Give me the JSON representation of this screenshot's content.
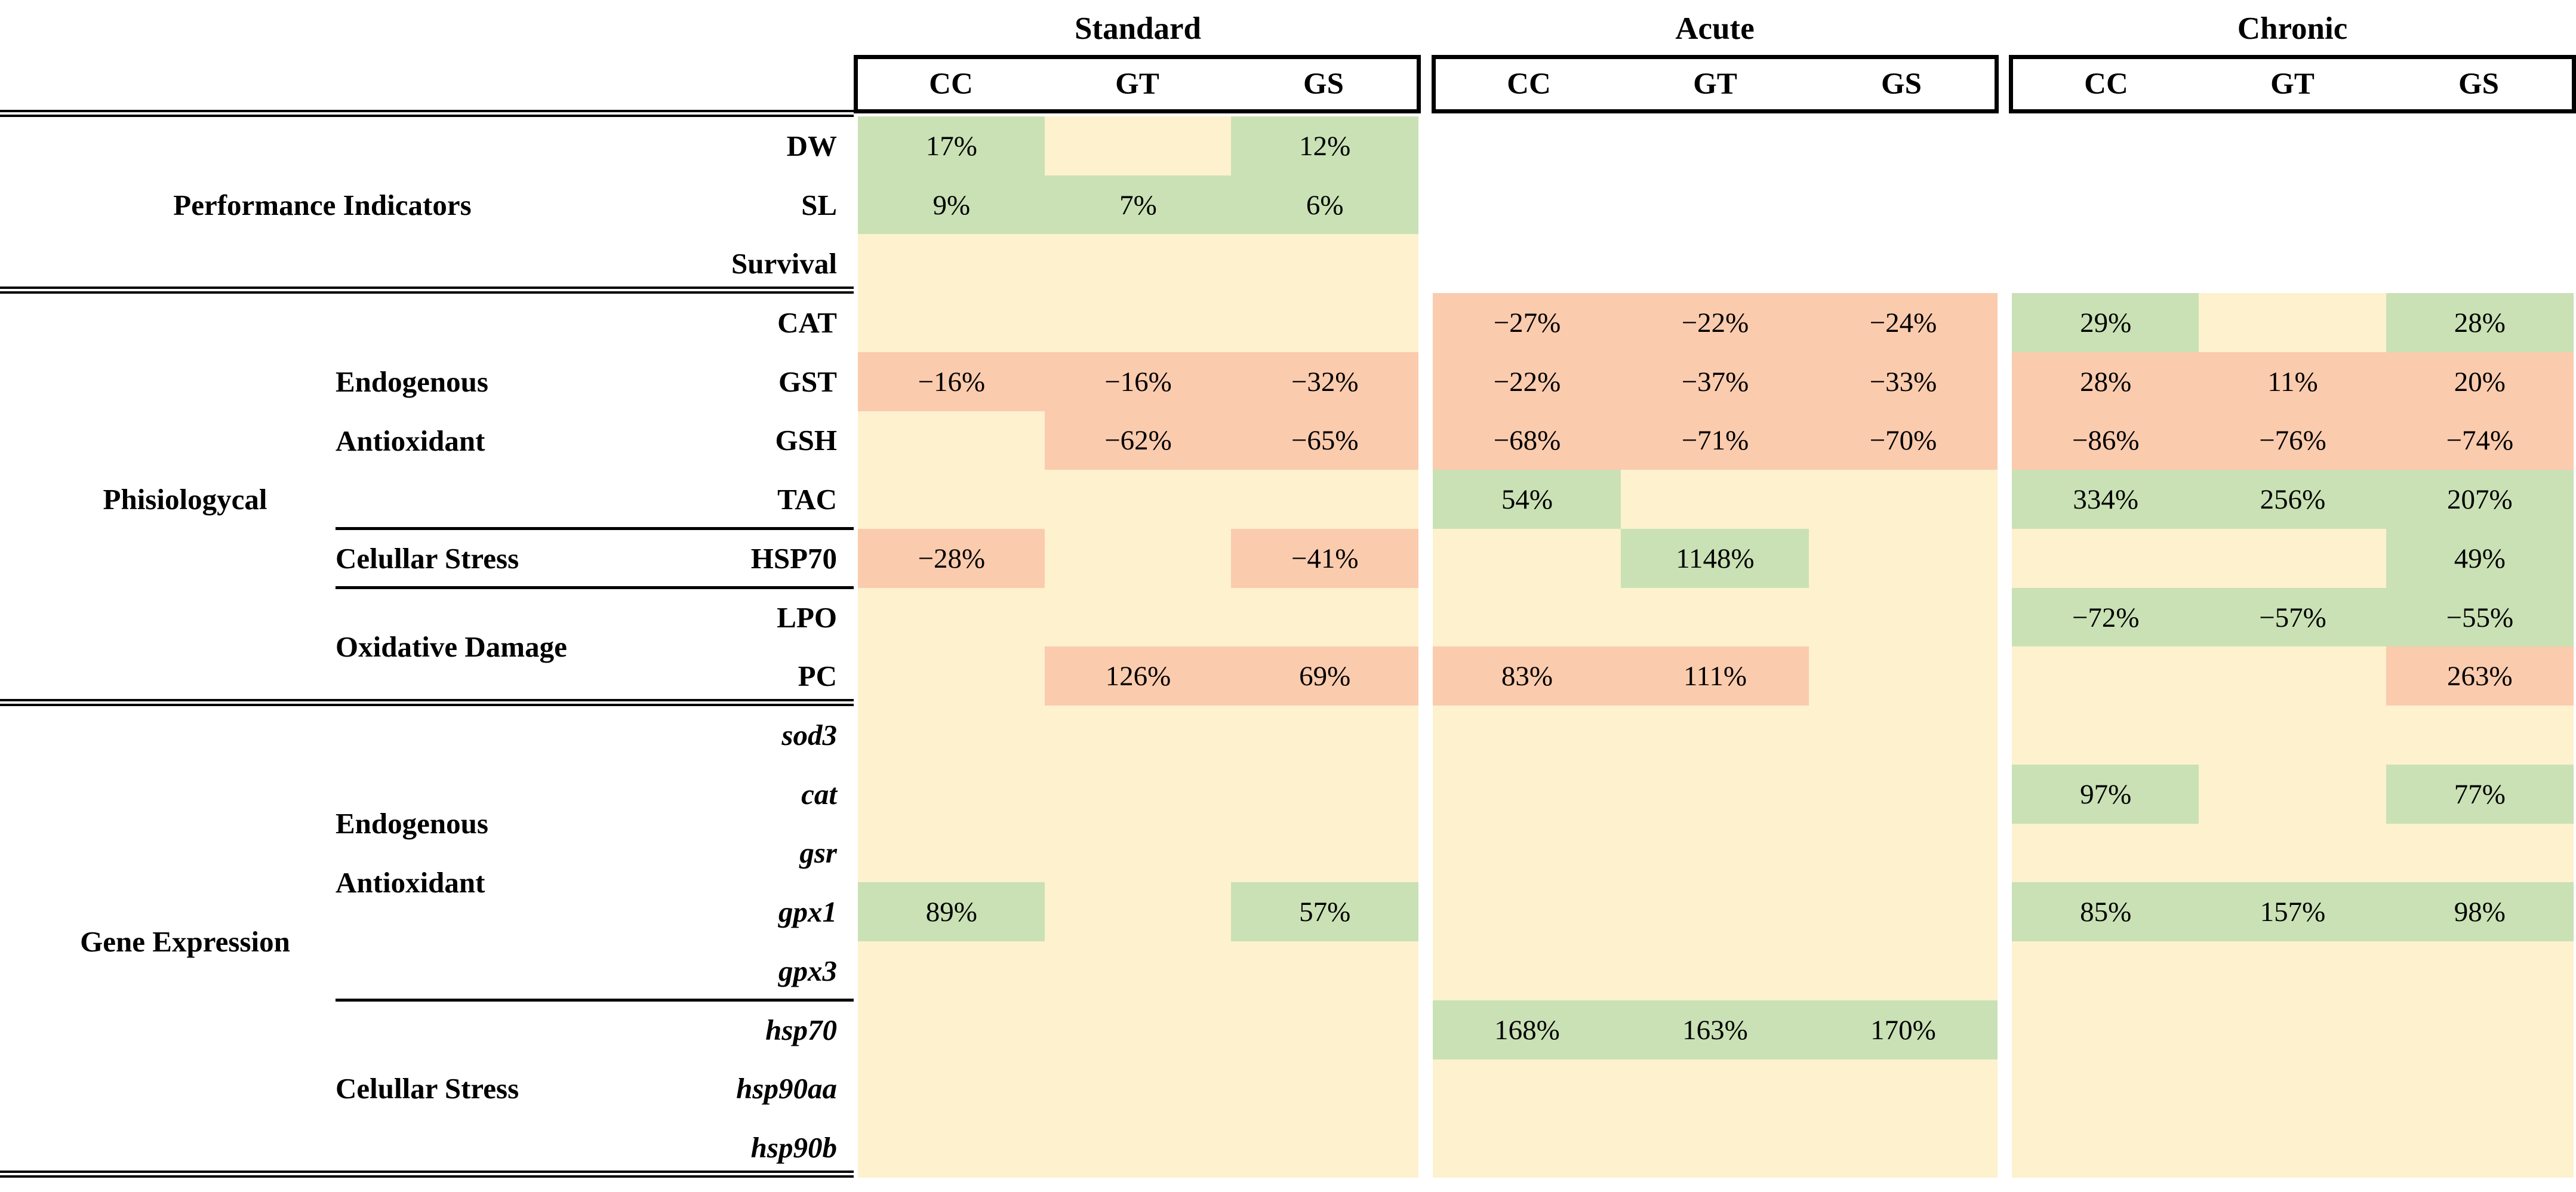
{
  "chart_data": {
    "type": "heatmap",
    "title": "",
    "column_groups": [
      "Standard",
      "Acute",
      "Chronic"
    ],
    "columns_per_group": [
      "CC",
      "GT",
      "GS"
    ],
    "color_legend": {
      "g": "#C9E1B5",
      "y": "#FDF1CE",
      "o": "#FBCBAE",
      "w": "#FFFFFF"
    },
    "color_meaning": {
      "g": "significant increase / favorable (green)",
      "o": "significant decrease / unfavorable (orange)",
      "y": "no significant change (cream)",
      "w": "not measured (white)"
    },
    "rows": [
      {
        "param": "DW",
        "italic": false,
        "cells": [
          [
            "17%",
            "g"
          ],
          [
            "",
            "y"
          ],
          [
            "12%",
            "g"
          ],
          [
            "",
            "w"
          ],
          [
            "",
            "w"
          ],
          [
            "",
            "w"
          ],
          [
            "",
            "w"
          ],
          [
            "",
            "w"
          ],
          [
            "",
            "w"
          ]
        ]
      },
      {
        "param": "SL",
        "italic": false,
        "cells": [
          [
            "9%",
            "g"
          ],
          [
            "7%",
            "g"
          ],
          [
            "6%",
            "g"
          ],
          [
            "",
            "w"
          ],
          [
            "",
            "w"
          ],
          [
            "",
            "w"
          ],
          [
            "",
            "w"
          ],
          [
            "",
            "w"
          ],
          [
            "",
            "w"
          ]
        ]
      },
      {
        "param": "Survival",
        "italic": false,
        "cells": [
          [
            "",
            "y"
          ],
          [
            "",
            "y"
          ],
          [
            "",
            "y"
          ],
          [
            "",
            "w"
          ],
          [
            "",
            "w"
          ],
          [
            "",
            "w"
          ],
          [
            "",
            "w"
          ],
          [
            "",
            "w"
          ],
          [
            "",
            "w"
          ]
        ]
      },
      {
        "param": "CAT",
        "italic": false,
        "cells": [
          [
            "",
            "y"
          ],
          [
            "",
            "y"
          ],
          [
            "",
            "y"
          ],
          [
            "−27%",
            "o"
          ],
          [
            "−22%",
            "o"
          ],
          [
            "−24%",
            "o"
          ],
          [
            "29%",
            "g"
          ],
          [
            "",
            "y"
          ],
          [
            "28%",
            "g"
          ]
        ]
      },
      {
        "param": "GST",
        "italic": false,
        "cells": [
          [
            "−16%",
            "o"
          ],
          [
            "−16%",
            "o"
          ],
          [
            "−32%",
            "o"
          ],
          [
            "−22%",
            "o"
          ],
          [
            "−37%",
            "o"
          ],
          [
            "−33%",
            "o"
          ],
          [
            "28%",
            "o"
          ],
          [
            "11%",
            "o"
          ],
          [
            "20%",
            "o"
          ]
        ]
      },
      {
        "param": "GSH",
        "italic": false,
        "cells": [
          [
            "",
            "y"
          ],
          [
            "−62%",
            "o"
          ],
          [
            "−65%",
            "o"
          ],
          [
            "−68%",
            "o"
          ],
          [
            "−71%",
            "o"
          ],
          [
            "−70%",
            "o"
          ],
          [
            "−86%",
            "o"
          ],
          [
            "−76%",
            "o"
          ],
          [
            "−74%",
            "o"
          ]
        ]
      },
      {
        "param": "TAC",
        "italic": false,
        "cells": [
          [
            "",
            "y"
          ],
          [
            "",
            "y"
          ],
          [
            "",
            "y"
          ],
          [
            "54%",
            "g"
          ],
          [
            "",
            "y"
          ],
          [
            "",
            "y"
          ],
          [
            "334%",
            "g"
          ],
          [
            "256%",
            "g"
          ],
          [
            "207%",
            "g"
          ]
        ]
      },
      {
        "param": "HSP70",
        "italic": false,
        "cells": [
          [
            "−28%",
            "o"
          ],
          [
            "",
            "y"
          ],
          [
            "−41%",
            "o"
          ],
          [
            "",
            "y"
          ],
          [
            "1148%",
            "g"
          ],
          [
            "",
            "y"
          ],
          [
            "",
            "y"
          ],
          [
            "",
            "y"
          ],
          [
            "49%",
            "g"
          ]
        ]
      },
      {
        "param": "LPO",
        "italic": false,
        "cells": [
          [
            "",
            "y"
          ],
          [
            "",
            "y"
          ],
          [
            "",
            "y"
          ],
          [
            "",
            "y"
          ],
          [
            "",
            "y"
          ],
          [
            "",
            "y"
          ],
          [
            "−72%",
            "g"
          ],
          [
            "−57%",
            "g"
          ],
          [
            "−55%",
            "g"
          ]
        ]
      },
      {
        "param": "PC",
        "italic": false,
        "cells": [
          [
            "",
            "y"
          ],
          [
            "126%",
            "o"
          ],
          [
            "69%",
            "o"
          ],
          [
            "83%",
            "o"
          ],
          [
            "111%",
            "o"
          ],
          [
            "",
            "y"
          ],
          [
            "",
            "y"
          ],
          [
            "",
            "y"
          ],
          [
            "263%",
            "o"
          ]
        ]
      },
      {
        "param": "sod3",
        "italic": true,
        "cells": [
          [
            "",
            "y"
          ],
          [
            "",
            "y"
          ],
          [
            "",
            "y"
          ],
          [
            "",
            "y"
          ],
          [
            "",
            "y"
          ],
          [
            "",
            "y"
          ],
          [
            "",
            "y"
          ],
          [
            "",
            "y"
          ],
          [
            "",
            "y"
          ]
        ]
      },
      {
        "param": "cat",
        "italic": true,
        "cells": [
          [
            "",
            "y"
          ],
          [
            "",
            "y"
          ],
          [
            "",
            "y"
          ],
          [
            "",
            "y"
          ],
          [
            "",
            "y"
          ],
          [
            "",
            "y"
          ],
          [
            "97%",
            "g"
          ],
          [
            "",
            "y"
          ],
          [
            "77%",
            "g"
          ]
        ]
      },
      {
        "param": "gsr",
        "italic": true,
        "cells": [
          [
            "",
            "y"
          ],
          [
            "",
            "y"
          ],
          [
            "",
            "y"
          ],
          [
            "",
            "y"
          ],
          [
            "",
            "y"
          ],
          [
            "",
            "y"
          ],
          [
            "",
            "y"
          ],
          [
            "",
            "y"
          ],
          [
            "",
            "y"
          ]
        ]
      },
      {
        "param": "gpx1",
        "italic": true,
        "cells": [
          [
            "89%",
            "g"
          ],
          [
            "",
            "y"
          ],
          [
            "57%",
            "g"
          ],
          [
            "",
            "y"
          ],
          [
            "",
            "y"
          ],
          [
            "",
            "y"
          ],
          [
            "85%",
            "g"
          ],
          [
            "157%",
            "g"
          ],
          [
            "98%",
            "g"
          ]
        ]
      },
      {
        "param": "gpx3",
        "italic": true,
        "cells": [
          [
            "",
            "y"
          ],
          [
            "",
            "y"
          ],
          [
            "",
            "y"
          ],
          [
            "",
            "y"
          ],
          [
            "",
            "y"
          ],
          [
            "",
            "y"
          ],
          [
            "",
            "y"
          ],
          [
            "",
            "y"
          ],
          [
            "",
            "y"
          ]
        ]
      },
      {
        "param": "hsp70",
        "italic": true,
        "cells": [
          [
            "",
            "y"
          ],
          [
            "",
            "y"
          ],
          [
            "",
            "y"
          ],
          [
            "168%",
            "g"
          ],
          [
            "163%",
            "g"
          ],
          [
            "170%",
            "g"
          ],
          [
            "",
            "y"
          ],
          [
            "",
            "y"
          ],
          [
            "",
            "y"
          ]
        ]
      },
      {
        "param": "hsp90aa",
        "italic": true,
        "cells": [
          [
            "",
            "y"
          ],
          [
            "",
            "y"
          ],
          [
            "",
            "y"
          ],
          [
            "",
            "y"
          ],
          [
            "",
            "y"
          ],
          [
            "",
            "y"
          ],
          [
            "",
            "y"
          ],
          [
            "",
            "y"
          ],
          [
            "",
            "y"
          ]
        ]
      },
      {
        "param": "hsp90b",
        "italic": true,
        "cells": [
          [
            "",
            "y"
          ],
          [
            "",
            "y"
          ],
          [
            "",
            "y"
          ],
          [
            "",
            "y"
          ],
          [
            "",
            "y"
          ],
          [
            "",
            "y"
          ],
          [
            "",
            "y"
          ],
          [
            "",
            "y"
          ],
          [
            "",
            "y"
          ]
        ]
      }
    ],
    "left_labels": {
      "categories": [
        {
          "label": "Performance Indicators",
          "row_start": 0,
          "row_end": 2,
          "wide": true
        },
        {
          "label": "Phisiologycal",
          "row_start": 3,
          "row_end": 9,
          "wide": false
        },
        {
          "label": "Gene Expression",
          "row_start": 10,
          "row_end": 17,
          "wide": false
        }
      ],
      "subcategories": [
        {
          "lines": [
            "Endogenous",
            "Antioxidant"
          ],
          "row_start": 3,
          "row_end": 6
        },
        {
          "lines": [
            "Celullar Stress"
          ],
          "row_start": 7,
          "row_end": 7
        },
        {
          "lines": [
            "Oxidative Damage"
          ],
          "row_start": 8,
          "row_end": 9
        },
        {
          "lines": [
            "Endogenous",
            "Antioxidant"
          ],
          "row_start": 10,
          "row_end": 14
        },
        {
          "lines": [
            "Celullar Stress"
          ],
          "row_start": 15,
          "row_end": 17
        }
      ],
      "major_divider_boundaries": [
        0,
        3,
        10,
        18
      ],
      "sub_divider_boundaries": [
        7,
        8,
        15
      ]
    }
  }
}
